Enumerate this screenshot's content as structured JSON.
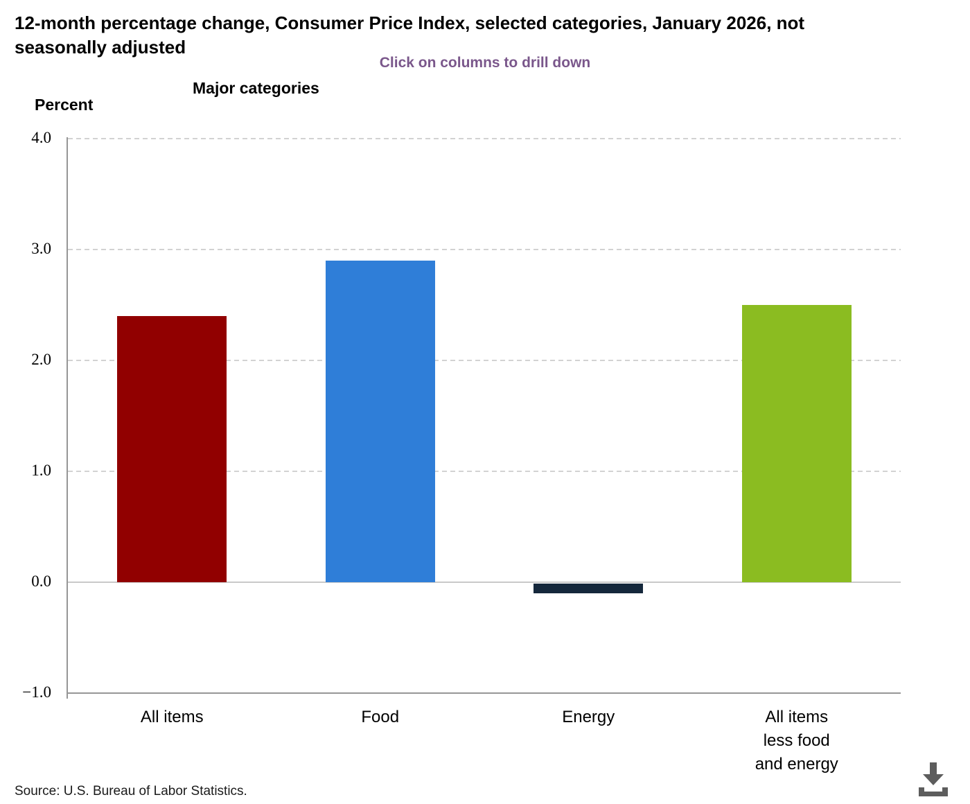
{
  "header": {
    "title_lines": [
      "12-month percentage change, Consumer Price Index, selected categories, January 2026, not",
      "seasonally adjusted"
    ],
    "subtitle": "Click on columns to drill down",
    "subtitle_color": "#7a578b"
  },
  "chart_data": {
    "type": "bar",
    "title": "12-month percentage change, Consumer Price Index, selected categories, January 2026, not seasonally adjusted",
    "subtitle": "Click on columns to drill down",
    "xlabel": "Major categories",
    "ylabel": "Percent",
    "categories": [
      "All items",
      "Food",
      "Energy",
      "All items less food and energy"
    ],
    "category_display_lines": [
      [
        "All items"
      ],
      [
        "Food"
      ],
      [
        "Energy"
      ],
      [
        "All items",
        "less food",
        "and energy"
      ]
    ],
    "values": [
      2.4,
      2.9,
      -0.1,
      2.5
    ],
    "bar_colors": [
      "#910000",
      "#2f7ed8",
      "#15283c",
      "#8bbc21"
    ],
    "ylim": [
      -1.0,
      4.0
    ],
    "yticks": [
      {
        "label": "4.0",
        "value": 4.0
      },
      {
        "label": "3.0",
        "value": 3.0
      },
      {
        "label": "2.0",
        "value": 2.0
      },
      {
        "label": "1.0",
        "value": 1.0
      },
      {
        "label": "0.0",
        "value": 0.0
      },
      {
        "label": "−1.0",
        "value": -1.0
      }
    ],
    "grid": true,
    "legend": "none"
  },
  "footer": {
    "source": "Source: U.S. Bureau of Labor Statistics."
  },
  "icons": {
    "download": "download-icon"
  }
}
